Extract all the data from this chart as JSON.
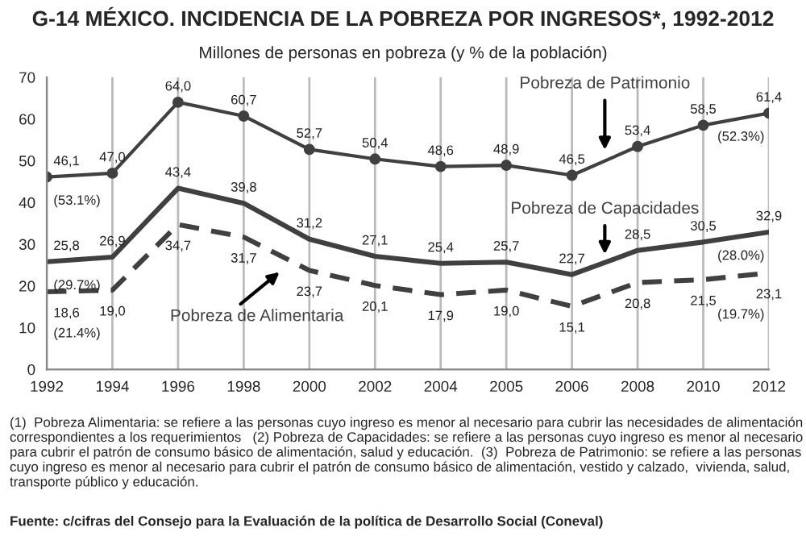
{
  "chart_data": {
    "type": "line",
    "title": "G-14 MÉXICO. INCIDENCIA DE LA POBREZA POR INGRESOS*, 1992-2012",
    "subtitle": "Millones de personas en pobreza (y % de la población)",
    "categories": [
      "1992",
      "1994",
      "1996",
      "1998",
      "2000",
      "2002",
      "2004",
      "2005",
      "2006",
      "2008",
      "2010",
      "2012"
    ],
    "series": [
      {
        "name": "Pobreza de Patrimonio",
        "color": "#404040",
        "marker": "circle",
        "line_style": "solid",
        "values": [
          46.1,
          47.0,
          64.0,
          60.7,
          52.7,
          50.4,
          48.6,
          48.9,
          46.5,
          53.4,
          58.5,
          61.4
        ],
        "value_labels": [
          "46,1",
          "47,0",
          "64,0",
          "60,7",
          "52,7",
          "50,4",
          "48,6",
          "48,9",
          "46,5",
          "53,4",
          "58,5",
          "61,4"
        ]
      },
      {
        "name": "Pobreza de Capacidades",
        "color": "#404040",
        "marker": "none",
        "line_style": "solid",
        "values": [
          25.8,
          26.9,
          43.4,
          39.8,
          31.2,
          27.1,
          25.4,
          25.7,
          22.7,
          28.5,
          30.5,
          32.9
        ],
        "value_labels": [
          "25,8",
          "26,9",
          "43,4",
          "39,8",
          "31,2",
          "27,1",
          "25,4",
          "25,7",
          "22,7",
          "28,5",
          "30,5",
          "32,9"
        ]
      },
      {
        "name": "Pobreza de Alimentaria",
        "color": "#404040",
        "marker": "none",
        "line_style": "dashed",
        "values": [
          18.6,
          19.0,
          34.7,
          31.7,
          23.7,
          20.1,
          17.9,
          19.0,
          15.1,
          20.8,
          21.5,
          23.1
        ],
        "value_labels": [
          "18,6",
          "19,0",
          "34,7",
          "31,7",
          "23,7",
          "20,1",
          "17,9",
          "19,0",
          "15,1",
          "20,8",
          "21,5",
          "23,1"
        ]
      }
    ],
    "ylim": [
      0,
      70
    ],
    "yticks": [
      0,
      10,
      20,
      30,
      40,
      50,
      60,
      70
    ],
    "grid": "x",
    "legend": false,
    "annotations": [
      {
        "text": "(53.1%)",
        "x": "1992",
        "y": 46.1
      },
      {
        "text": "(52.3%)",
        "x": "2012",
        "y": 61.4
      },
      {
        "text": "(29.7%)",
        "x": "1992",
        "y": 25.8
      },
      {
        "text": "(28.0%)",
        "x": "2012",
        "y": 32.9
      },
      {
        "text": "(21.4%)",
        "x": "1992",
        "y": 18.6
      },
      {
        "text": "(19.7%)",
        "x": "2012",
        "y": 23.1
      },
      "(1)  Pobreza Alimentaria: se refiere a las personas cuyo ingreso es menor al necesario para cubrir las necesidades de alimentación correspondientes a los requerimientos   (2) Pobreza de Capacidades: se refiere a las personas cuyo ingreso es menor al necesario para cubrir el patrón de consumo básico de alimentación, salud y educación.  (3)  Pobreza de Patrimonio: se refiere a las personas cuyo ingreso es menor al necesario para cubrir el patrón de consumo básico de alimentación, vestido y calzado,  vivienda, salud, transporte público y educación.",
      "Fuente: c/cifras del Consejo para la Evaluación de la política de Desarrollo Social (Coneval)"
    ]
  }
}
